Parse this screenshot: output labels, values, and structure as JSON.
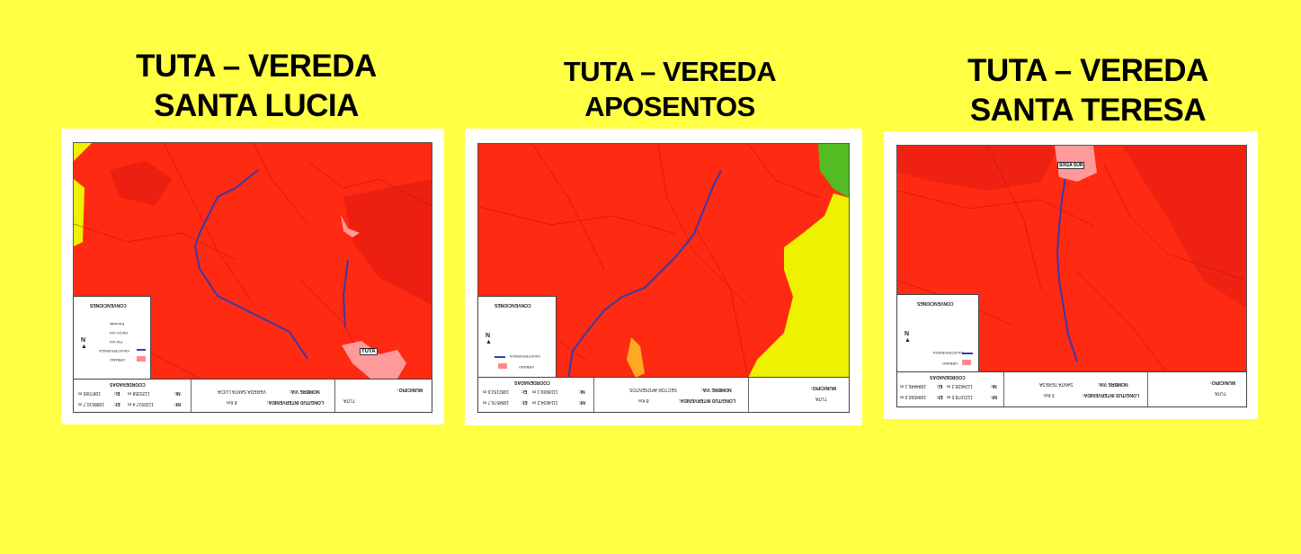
{
  "maps": [
    {
      "title_line1": "TUTA – VEREDA",
      "title_line2": "SANTA LUCIA",
      "legend_title": "CONVENCIONES",
      "legend_items": [
        "Escuelas",
        "INICIO VIA",
        "FIN VIA",
        "VIA INTERVENIDA",
        "URBANO"
      ],
      "coords_header": "COORDENADAS",
      "ni_label": "Ni:",
      "ni_value": "1125358 m",
      "ei_label": "Ei:",
      "ei_value": "1087065 m",
      "nf_label": "Nf:",
      "nf_value": "1120917,4 m",
      "ef_label": "Ef:",
      "ef_value": "1088610,7 m",
      "nombre_via_label": "NOMBRE VIA:",
      "nombre_via_value": "VEREDA SANTA LUCIA",
      "longitud_label": "LONGITUD INTERVENIDA:",
      "longitud_value": "8 Km",
      "municipio_label": "MUNICIPIO:",
      "municipio_value": "TUTA",
      "town_label": "TUTA",
      "colors": {
        "base": "#ff2a12",
        "light": "#ffff00"
      }
    },
    {
      "title_line1": "TUTA – VEREDA",
      "title_line2": "APOSENTOS",
      "legend_title": "CONVENCIONES",
      "legend_items": [
        "VIA INTERVENIDA",
        "URBANO"
      ],
      "coords_header": "COORDENADAS",
      "ni_label": "Ni:",
      "ni_value": "1118669,1 m",
      "ei_label": "Ei:",
      "ei_value": "1082152,6 m",
      "nf_label": "Nf:",
      "nf_value": "1114634,2 m",
      "ef_label": "Ef:",
      "ef_value": "1084576,7 m",
      "nombre_via_label": "NOMBRE VIA:",
      "nombre_via_value": "SECTOR APOSENTOS",
      "longitud_label": "LONGITUD INTERVENIDA:",
      "longitud_value": "8 Km",
      "municipio_label": "MUNICIPIO:",
      "municipio_value": "TUTA",
      "colors": {
        "base": "#ff2a12",
        "light": "#eef200",
        "green": "#55bb22"
      }
    },
    {
      "title_line1": "TUTA – VEREDA",
      "title_line2": "SANTA TERESA",
      "legend_title": "CONVENCIONES",
      "legend_items": [
        "VIA INTERVENIDA",
        "URBANO"
      ],
      "coords_header": "COORDENADAS",
      "ni_label": "Ni:",
      "ni_value": "1124628,3 m",
      "ei_label": "Ei:",
      "ei_value": "1084446,1 m",
      "nf_label": "Nf:",
      "nf_value": "1121078,5 m",
      "ef_label": "Ef:",
      "ef_value": "1084560,9 m",
      "nombre_via_label": "NOMBRE VIA:",
      "nombre_via_value": "SANTA TERESA",
      "longitud_label": "LONGITUD INTERVENIDA:",
      "longitud_value": "5 Km",
      "municipio_label": "MUNICIPIO:",
      "municipio_value": "TUTA",
      "town_label": "SOGA SUR",
      "colors": {
        "base": "#ff2a12"
      }
    }
  ]
}
